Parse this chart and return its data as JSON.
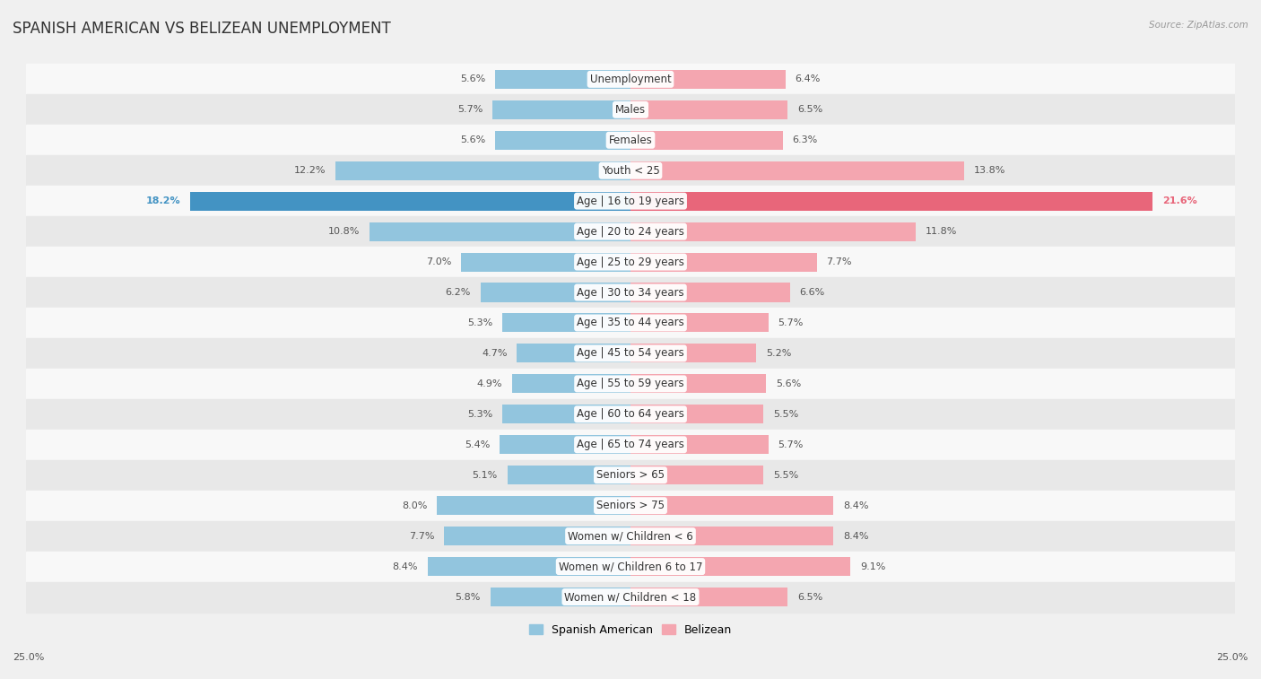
{
  "title": "SPANISH AMERICAN VS BELIZEAN UNEMPLOYMENT",
  "source": "Source: ZipAtlas.com",
  "categories": [
    "Unemployment",
    "Males",
    "Females",
    "Youth < 25",
    "Age | 16 to 19 years",
    "Age | 20 to 24 years",
    "Age | 25 to 29 years",
    "Age | 30 to 34 years",
    "Age | 35 to 44 years",
    "Age | 45 to 54 years",
    "Age | 55 to 59 years",
    "Age | 60 to 64 years",
    "Age | 65 to 74 years",
    "Seniors > 65",
    "Seniors > 75",
    "Women w/ Children < 6",
    "Women w/ Children 6 to 17",
    "Women w/ Children < 18"
  ],
  "spanish_american": [
    5.6,
    5.7,
    5.6,
    12.2,
    18.2,
    10.8,
    7.0,
    6.2,
    5.3,
    4.7,
    4.9,
    5.3,
    5.4,
    5.1,
    8.0,
    7.7,
    8.4,
    5.8
  ],
  "belizean": [
    6.4,
    6.5,
    6.3,
    13.8,
    21.6,
    11.8,
    7.7,
    6.6,
    5.7,
    5.2,
    5.6,
    5.5,
    5.7,
    5.5,
    8.4,
    8.4,
    9.1,
    6.5
  ],
  "spanish_american_color": "#92c5de",
  "belizean_color": "#f4a6b0",
  "highlight_sa_color": "#4393c3",
  "highlight_bz_color": "#e8667a",
  "highlight_index": 4,
  "xlim": 25.0,
  "background_color": "#f0f0f0",
  "row_colors_even": "#f8f8f8",
  "row_colors_odd": "#e8e8e8",
  "title_fontsize": 12,
  "label_fontsize": 8.5,
  "value_fontsize": 8,
  "bar_height": 0.62
}
